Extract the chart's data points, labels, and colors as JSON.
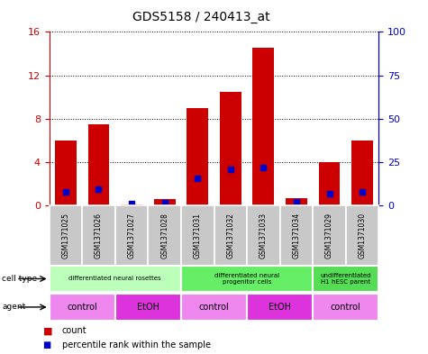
{
  "title": "GDS5158 / 240413_at",
  "samples": [
    "GSM1371025",
    "GSM1371026",
    "GSM1371027",
    "GSM1371028",
    "GSM1371031",
    "GSM1371032",
    "GSM1371033",
    "GSM1371034",
    "GSM1371029",
    "GSM1371030"
  ],
  "counts": [
    6.0,
    7.5,
    0.1,
    0.6,
    9.0,
    10.5,
    14.5,
    0.7,
    4.0,
    6.0
  ],
  "percentiles": [
    8.0,
    9.5,
    0.8,
    1.3,
    15.5,
    20.5,
    22.0,
    1.8,
    6.5,
    7.5
  ],
  "ylim_left": [
    0,
    16
  ],
  "ylim_right": [
    0,
    100
  ],
  "yticks_left": [
    0,
    4,
    8,
    12,
    16
  ],
  "yticks_right": [
    0,
    25,
    50,
    75,
    100
  ],
  "bar_color": "#cc0000",
  "square_color": "#0000cc",
  "bar_width": 0.65,
  "cell_types": [
    {
      "label": "differentiated neural rosettes",
      "start": 0,
      "end": 4,
      "color": "#bbffbb"
    },
    {
      "label": "differentiated neural\nprogenitor cells",
      "start": 4,
      "end": 8,
      "color": "#66ee66"
    },
    {
      "label": "undifferentiated\nH1 hESC parent",
      "start": 8,
      "end": 10,
      "color": "#55dd55"
    }
  ],
  "agents": [
    {
      "label": "control",
      "start": 0,
      "end": 2,
      "color": "#ee88ee"
    },
    {
      "label": "EtOH",
      "start": 2,
      "end": 4,
      "color": "#dd33dd"
    },
    {
      "label": "control",
      "start": 4,
      "end": 6,
      "color": "#ee88ee"
    },
    {
      "label": "EtOH",
      "start": 6,
      "end": 8,
      "color": "#dd33dd"
    },
    {
      "label": "control",
      "start": 8,
      "end": 10,
      "color": "#ee88ee"
    }
  ],
  "sample_bg_color": "#c8c8c8",
  "left_axis_color": "#cc0000",
  "right_axis_color": "#0000cc"
}
